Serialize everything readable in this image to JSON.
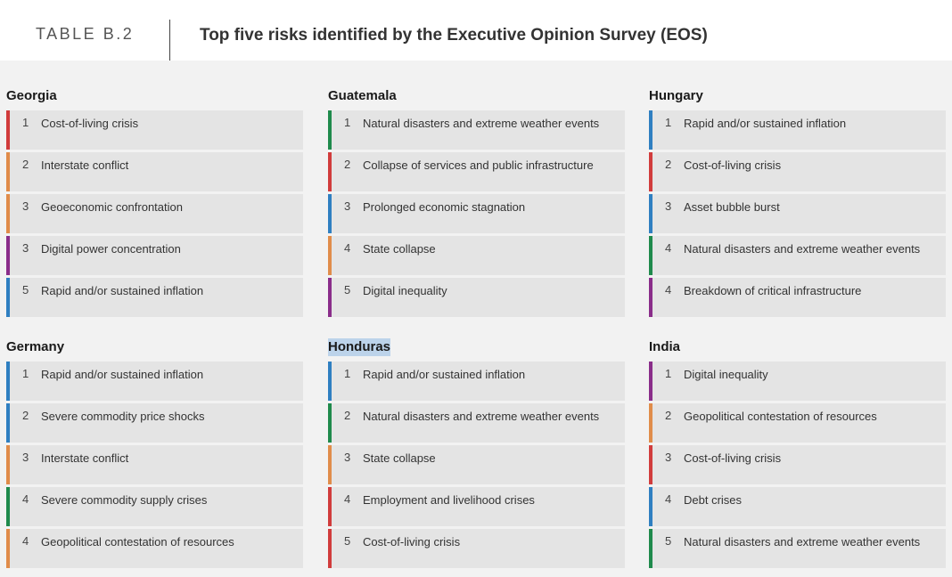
{
  "header": {
    "table_label": "TABLE B.2",
    "title": "Top five risks identified by the Executive Opinion Survey (EOS)"
  },
  "colors": {
    "red": "#d13c3c",
    "orange": "#e08c4a",
    "purple": "#8a2d8a",
    "blue": "#2f7fc1",
    "green": "#1f8a4c"
  },
  "countries": [
    {
      "name": "Georgia",
      "risks": [
        {
          "rank": "1",
          "label": "Cost-of-living crisis",
          "color": "#d13c3c"
        },
        {
          "rank": "2",
          "label": "Interstate conflict",
          "color": "#e08c4a"
        },
        {
          "rank": "3",
          "label": "Geoeconomic confrontation",
          "color": "#e08c4a"
        },
        {
          "rank": "3",
          "label": "Digital power concentration",
          "color": "#8a2d8a"
        },
        {
          "rank": "5",
          "label": "Rapid and/or sustained inflation",
          "color": "#2f7fc1"
        }
      ]
    },
    {
      "name": "Guatemala",
      "risks": [
        {
          "rank": "1",
          "label": "Natural disasters and extreme weather events",
          "color": "#1f8a4c"
        },
        {
          "rank": "2",
          "label": "Collapse of services and public infrastructure",
          "color": "#d13c3c"
        },
        {
          "rank": "3",
          "label": "Prolonged economic stagnation",
          "color": "#2f7fc1"
        },
        {
          "rank": "4",
          "label": "State collapse",
          "color": "#e08c4a"
        },
        {
          "rank": "5",
          "label": "Digital inequality",
          "color": "#8a2d8a"
        }
      ]
    },
    {
      "name": "Hungary",
      "risks": [
        {
          "rank": "1",
          "label": "Rapid and/or sustained inflation",
          "color": "#2f7fc1"
        },
        {
          "rank": "2",
          "label": "Cost-of-living crisis",
          "color": "#d13c3c"
        },
        {
          "rank": "3",
          "label": "Asset bubble burst",
          "color": "#2f7fc1"
        },
        {
          "rank": "4",
          "label": "Natural disasters and extreme weather events",
          "color": "#1f8a4c"
        },
        {
          "rank": "4",
          "label": "Breakdown of critical infrastructure",
          "color": "#8a2d8a"
        }
      ]
    },
    {
      "name": "Germany",
      "risks": [
        {
          "rank": "1",
          "label": "Rapid and/or sustained inflation",
          "color": "#2f7fc1"
        },
        {
          "rank": "2",
          "label": "Severe commodity price shocks",
          "color": "#2f7fc1"
        },
        {
          "rank": "3",
          "label": "Interstate conflict",
          "color": "#e08c4a"
        },
        {
          "rank": "4",
          "label": "Severe commodity supply crises",
          "color": "#1f8a4c"
        },
        {
          "rank": "4",
          "label": "Geopolitical contestation of resources",
          "color": "#e08c4a"
        }
      ]
    },
    {
      "name": "Honduras",
      "highlight": true,
      "risks": [
        {
          "rank": "1",
          "label": "Rapid and/or sustained inflation",
          "color": "#2f7fc1"
        },
        {
          "rank": "2",
          "label": "Natural disasters and extreme weather events",
          "color": "#1f8a4c"
        },
        {
          "rank": "3",
          "label": "State collapse",
          "color": "#e08c4a"
        },
        {
          "rank": "4",
          "label": "Employment and livelihood crises",
          "color": "#d13c3c"
        },
        {
          "rank": "5",
          "label": "Cost-of-living crisis",
          "color": "#d13c3c"
        }
      ]
    },
    {
      "name": "India",
      "risks": [
        {
          "rank": "1",
          "label": "Digital inequality",
          "color": "#8a2d8a"
        },
        {
          "rank": "2",
          "label": "Geopolitical contestation of resources",
          "color": "#e08c4a"
        },
        {
          "rank": "3",
          "label": "Cost-of-living crisis",
          "color": "#d13c3c"
        },
        {
          "rank": "4",
          "label": "Debt crises",
          "color": "#2f7fc1"
        },
        {
          "rank": "5",
          "label": "Natural disasters and extreme weather events",
          "color": "#1f8a4c"
        }
      ]
    }
  ]
}
